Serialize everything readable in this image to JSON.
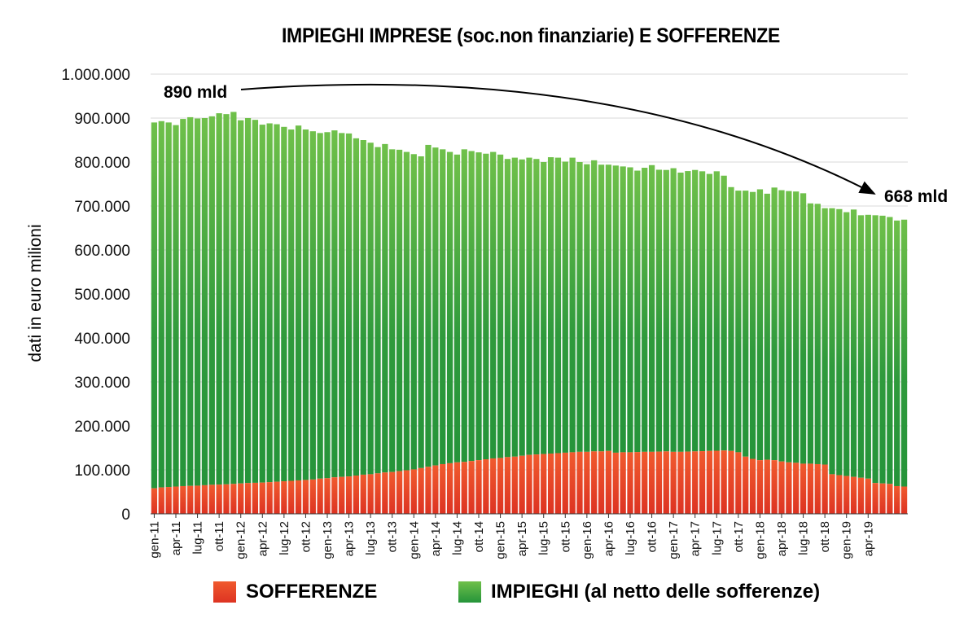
{
  "chart_data": {
    "type": "bar",
    "stacked": true,
    "title": "IMPIEGHI IMPRESE (soc.non finanziarie) E SOFFERENZE",
    "ylabel": "dati in euro milioni",
    "xlabel": "",
    "ylim": [
      0,
      1000000
    ],
    "ytick_values": [
      0,
      100000,
      200000,
      300000,
      400000,
      500000,
      600000,
      700000,
      800000,
      900000,
      1000000
    ],
    "ytick_labels": [
      "0",
      "100.000",
      "200.000",
      "300.000",
      "400.000",
      "500.000",
      "600.000",
      "700.000",
      "800.000",
      "900.000",
      "1.000.000"
    ],
    "grid": true,
    "legend_position": "bottom",
    "colors": {
      "sofferenze": "#e8452a",
      "impieghi": "#3fa83d"
    },
    "series": [
      {
        "name": "SOFFERENZE",
        "values": [
          58000,
          60000,
          61000,
          62000,
          63000,
          63500,
          64000,
          65000,
          66000,
          66500,
          67000,
          68000,
          69000,
          70000,
          70500,
          71000,
          72000,
          73000,
          74000,
          75000,
          76000,
          77000,
          78000,
          80000,
          81000,
          83000,
          84000,
          85000,
          87000,
          89000,
          90000,
          92000,
          94000,
          95000,
          97000,
          99000,
          101000,
          104000,
          107000,
          110000,
          113000,
          115000,
          117000,
          118000,
          120000,
          122000,
          124000,
          126000,
          127000,
          129000,
          130000,
          132000,
          134000,
          135000,
          136000,
          137000,
          138000,
          139000,
          140000,
          141000,
          141000,
          142000,
          142000,
          143000,
          139000,
          140000,
          140000,
          140500,
          141000,
          141000,
          141500,
          142000,
          141000,
          141000,
          141500,
          142000,
          142500,
          143000,
          143500,
          144000,
          143000,
          140000,
          130000,
          125000,
          122000,
          123000,
          122000,
          119000,
          117000,
          116000,
          114000,
          114000,
          113000,
          112000,
          90000,
          88000,
          86000,
          84000,
          82000,
          80000,
          70000,
          69000,
          68000,
          63000,
          62000
        ]
      },
      {
        "name": "IMPIEGHI (al netto delle sofferenze)",
        "values": [
          832000,
          833000,
          829000,
          822000,
          835000,
          838500,
          835000,
          835000,
          838000,
          844500,
          842000,
          846000,
          826000,
          830000,
          825500,
          814000,
          816000,
          813000,
          806000,
          799000,
          807000,
          797000,
          792000,
          786000,
          787000,
          789000,
          782000,
          780000,
          767000,
          761000,
          754000,
          742000,
          747000,
          734000,
          731000,
          724000,
          717000,
          709000,
          732000,
          723000,
          716000,
          708000,
          700000,
          711000,
          705000,
          700000,
          695000,
          697000,
          690000,
          678000,
          680000,
          674000,
          676000,
          672000,
          664000,
          674000,
          672000,
          662000,
          670000,
          659000,
          654000,
          662000,
          652000,
          651000,
          653000,
          650000,
          648000,
          640000,
          646000,
          652000,
          641000,
          640000,
          645000,
          635000,
          638000,
          640000,
          636500,
          630000,
          635500,
          625000,
          600000,
          595000,
          605000,
          607000,
          616000,
          605000,
          620000,
          617000,
          617000,
          617000,
          615000,
          592000,
          592000,
          583000,
          605000,
          605000,
          600000,
          608000,
          597000,
          600000,
          609000,
          609000,
          607000,
          604000,
          607000
        ]
      }
    ],
    "x_tick_labels": [
      "gen-11",
      "apr-11",
      "lug-11",
      "ott-11",
      "gen-12",
      "apr-12",
      "lug-12",
      "ott-12",
      "gen-13",
      "apr-13",
      "lug-13",
      "ott-13",
      "gen-14",
      "apr-14",
      "lug-14",
      "ott-14",
      "gen-15",
      "apr-15",
      "lug-15",
      "ott-15",
      "gen-16",
      "apr-16",
      "lug-16",
      "ott-16",
      "gen-17",
      "apr-17",
      "lug-17",
      "ott-17",
      "gen-18",
      "apr-18",
      "lug-18",
      "ott-18",
      "gen-19",
      "apr-19"
    ],
    "annotations": [
      {
        "text": "890 mld",
        "from_category": "gen-11",
        "to_category": "apr-19"
      },
      {
        "text": "668 mld"
      }
    ]
  }
}
